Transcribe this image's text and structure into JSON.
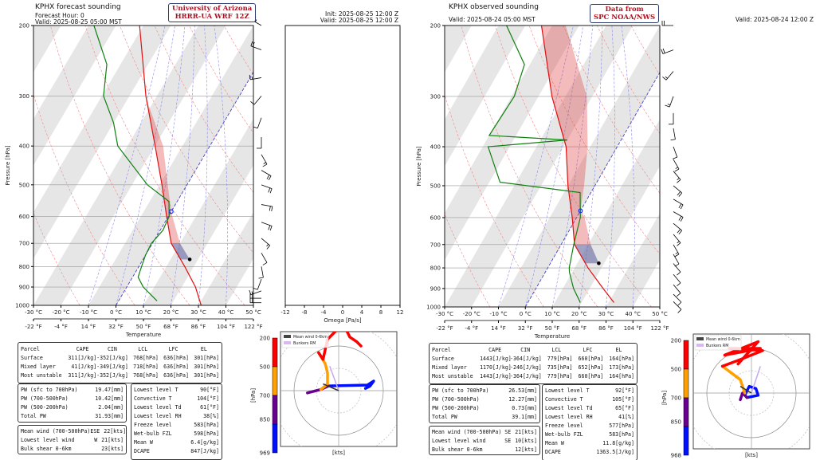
{
  "left": {
    "title": "KPHX forecast sounding",
    "subtitle1": "Forecast Hour: 0",
    "subtitle2": "Valid: 2025-08-25 05:00 MST",
    "badge": [
      "University of Arizona",
      "HRRR-UA WRF 12Z"
    ],
    "init": "Init: 2025-08-25 12:00 Z",
    "valid_z": "Valid: 2025-08-25 12:00 Z",
    "parcel_table": {
      "headers": [
        "Parcel",
        "CAPE",
        "CIN",
        "LCL",
        "LFC",
        "EL"
      ],
      "rows": [
        [
          "Surface",
          "311[J/kg]",
          "-352[J/kg]",
          "768[hPa]",
          "636[hPa]",
          "301[hPa]"
        ],
        [
          "Mixed layer",
          "41[J/kg]",
          "-349[J/kg]",
          "718[hPa]",
          "636[hPa]",
          "301[hPa]"
        ],
        [
          "Most unstable",
          "311[J/kg]",
          "-352[J/kg]",
          "768[hPa]",
          "636[hPa]",
          "301[hPa]"
        ]
      ]
    },
    "pw": [
      [
        "PW (sfc to 700hPa)",
        "19.47[mm]"
      ],
      [
        "PW (700-500hPa)",
        "10.42[mm]"
      ],
      [
        "PW (500-200hPa)",
        "2.04[mm]"
      ],
      [
        "Total PW",
        "31.93[mm]"
      ]
    ],
    "wind": [
      [
        "Mean wind (700-500hPa)",
        "ESE",
        "22[kts]"
      ],
      [
        "Lowest level wind",
        "W",
        "21[kts]"
      ],
      [
        "Bulk shear 0-6km",
        "",
        "23[kts]"
      ]
    ],
    "thermo": [
      [
        "Lowest level T",
        "90[°F]"
      ],
      [
        "Convective T",
        "104[°F]"
      ],
      [
        "Lowest level Td",
        "61[°F]"
      ],
      [
        "Lowest level RH",
        "38[%]"
      ],
      [
        "Freeze level",
        "583[hPa]"
      ],
      [
        "Wet-bulb FZL",
        "598[hPa]"
      ],
      [
        "Mean W",
        "6.4[g/kg]"
      ],
      [
        "DCAPE",
        "847[J/kg]"
      ]
    ]
  },
  "right": {
    "title": "KPHX observed sounding",
    "subtitle2": "Valid: 2025-08-24 05:00 MST",
    "badge": [
      "Data from",
      "SPC NOAA/NWS"
    ],
    "valid_z": "Valid: 2025-08-24 12:00 Z",
    "parcel_table": {
      "headers": [
        "Parcel",
        "CAPE",
        "CIN",
        "LCL",
        "LFC",
        "EL"
      ],
      "rows": [
        [
          "Surface",
          "1443[J/kg]",
          "-364[J/kg]",
          "779[hPa]",
          "660[hPa]",
          "164[hPa]"
        ],
        [
          "Mixed layer",
          "1170[J/kg]",
          "-246[J/kg]",
          "735[hPa]",
          "652[hPa]",
          "173[hPa]"
        ],
        [
          "Most unstable",
          "1443[J/kg]",
          "-364[J/kg]",
          "779[hPa]",
          "660[hPa]",
          "164[hPa]"
        ]
      ]
    },
    "pw": [
      [
        "PW (sfc to 700hPa)",
        "26.53[mm]"
      ],
      [
        "PW (700-500hPa)",
        "12.27[mm]"
      ],
      [
        "PW (500-200hPa)",
        "0.73[mm]"
      ],
      [
        "Total PW",
        "39.1[mm]"
      ]
    ],
    "wind": [
      [
        "Mean wind (700-500hPa)",
        "SE",
        "21[kts]"
      ],
      [
        "Lowest level wind",
        "SE",
        "10[kts]"
      ],
      [
        "Bulk shear 0-6km",
        "",
        "12[kts]"
      ]
    ],
    "thermo": [
      [
        "Lowest level T",
        "92[°F]"
      ],
      [
        "Convective T",
        "105[°F]"
      ],
      [
        "Lowest level Td",
        "65[°F]"
      ],
      [
        "Lowest level RH",
        "41[%]"
      ],
      [
        "Freeze level",
        "577[hPa]"
      ],
      [
        "Wet-bulb FZL",
        "583[hPa]"
      ],
      [
        "Mean W",
        "11.8[g/kg]"
      ],
      [
        "DCAPE",
        "1363.5[J/kg]"
      ]
    ]
  },
  "chart_data": [
    {
      "type": "line",
      "name_ref": "left-skewt",
      "xlabel": "Temperature",
      "ylabel": "Pressure [hPa]",
      "xlim": [
        -30,
        50
      ],
      "ylim": [
        1000,
        200
      ],
      "yscale": "log",
      "x_ticks": [
        "-30 °C",
        "-20 °C",
        "-10 °C",
        "0 °C",
        "10 °C",
        "20 °C",
        "30 °C",
        "40 °C",
        "50 °C"
      ],
      "x2_ticks": [
        "-22 °F",
        "-4 °F",
        "14 °F",
        "32 °F",
        "50 °F",
        "68 °F",
        "86 °F",
        "104 °F",
        "122 °F"
      ],
      "y_ticks": [
        "200",
        "300",
        "400",
        "500",
        "600",
        "700",
        "800",
        "900",
        "1000"
      ],
      "temperature": {
        "color": "#e01010",
        "p": [
          1000,
          900,
          800,
          700,
          600,
          500,
          400,
          300,
          200
        ],
        "t": [
          31,
          25,
          16.7,
          6.8,
          -0.6,
          -9.1,
          -19.9,
          -34,
          -51.4
        ]
      },
      "dewpoint": {
        "color": "#108010",
        "p": [
          975,
          900,
          850,
          800,
          750,
          700,
          650,
          600,
          550,
          500,
          400,
          350,
          300,
          250,
          200
        ],
        "t": [
          14,
          6,
          2,
          1,
          0,
          -0.4,
          1,
          0.3,
          -3,
          -14.4,
          -33.5,
          -40,
          -49.4,
          -55,
          -68
        ]
      },
      "parcel": {
        "p": [
          768,
          700,
          600,
          583,
          500,
          400,
          301
        ],
        "t": [
          17,
          10,
          1.5,
          0,
          -7,
          -17,
          -34
        ]
      },
      "lcl_hpa": 768,
      "freeze_hpa": 583,
      "omega": {
        "xlabel": "Omega [Pa/s]",
        "xlim": [
          -12,
          12
        ],
        "x_ticks": [
          "-12",
          "-8",
          "-4",
          "0",
          "4",
          "8",
          "12"
        ]
      },
      "barbs": {
        "p": [
          200,
          230,
          270,
          300,
          340,
          380,
          420,
          460,
          500,
          560,
          620,
          680,
          740,
          800,
          860,
          920,
          960,
          985
        ],
        "dir": [
          300,
          290,
          260,
          220,
          200,
          180,
          150,
          120,
          110,
          100,
          110,
          130,
          150,
          170,
          200,
          250,
          270,
          270
        ],
        "spd": [
          25,
          20,
          15,
          10,
          10,
          10,
          15,
          20,
          20,
          20,
          20,
          15,
          10,
          10,
          10,
          15,
          20,
          21
        ]
      },
      "hodograph": {
        "ylabel": "[hPa]",
        "xlabel": "[kts]",
        "colorbar_ticks": [
          "200",
          "500",
          "700",
          "850",
          "969"
        ],
        "legend": [
          "Mean wind 0-6km",
          "Bunkers RM"
        ],
        "segments": [
          {
            "color": "#0010ff",
            "u": [
              -4.6,
              5,
              12.9,
              15.7,
              14,
              12
            ],
            "v": [
              2.1,
              2.3,
              2.5,
              4.3,
              2,
              1
            ]
          },
          {
            "color": "#6a0090",
            "u": [
              -14,
              -8,
              -4.6
            ],
            "v": [
              -1,
              0.5,
              2.1
            ]
          },
          {
            "color": "#ffa000",
            "u": [
              -8,
              -5,
              -5,
              -6,
              -9
            ],
            "v": [
              0.5,
              3,
              8,
              12,
              17
            ]
          },
          {
            "color": "#ff0000",
            "u": [
              -9,
              -7,
              -5,
              -3,
              2,
              5,
              8,
              10
            ],
            "v": [
              17,
              14,
              23,
              25,
              30,
              24,
              22,
              20
            ]
          }
        ],
        "mean_wind": [
          -7,
          3
        ],
        "bunkers_rm": [
          -4,
          11
        ]
      }
    },
    {
      "type": "line",
      "name_ref": "right-skewt",
      "xlabel": "Temperature",
      "ylabel": "Pressure [hPa]",
      "xlim": [
        -30,
        50
      ],
      "ylim": [
        1000,
        200
      ],
      "yscale": "log",
      "x_ticks": [
        "-30 °C",
        "-20 °C",
        "-10 °C",
        "0 °C",
        "10 °C",
        "20 °C",
        "30 °C",
        "40 °C",
        "50 °C"
      ],
      "x2_ticks": [
        "-22 °F",
        "-4 °F",
        "14 °F",
        "32 °F",
        "50 °F",
        "68 °F",
        "86 °F",
        "104 °F",
        "122 °F"
      ],
      "y_ticks": [
        "200",
        "300",
        "400",
        "500",
        "600",
        "700",
        "800",
        "900",
        "1000"
      ],
      "temperature": {
        "color": "#e01010",
        "p": [
          975,
          900,
          800,
          700,
          600,
          500,
          400,
          300,
          200
        ],
        "t": [
          32,
          25,
          15,
          5,
          -1.6,
          -10,
          -19,
          -35,
          -54
        ]
      },
      "dewpoint": {
        "color": "#108010",
        "p": [
          975,
          900,
          820,
          800,
          700,
          600,
          520,
          490,
          400,
          385,
          375,
          300,
          250,
          200
        ],
        "t": [
          19.5,
          14,
          9,
          8,
          4.7,
          1.4,
          -4,
          -36,
          -48,
          -20,
          -50,
          -49,
          -52,
          -67
        ]
      },
      "parcel": {
        "p": [
          779,
          700,
          600,
          577,
          500,
          400,
          300,
          200
        ],
        "t": [
          18,
          11,
          3,
          0,
          -4,
          -11,
          -22,
          -45
        ]
      },
      "lcl_hpa": 779,
      "freeze_hpa": 577,
      "barbs": {
        "p": [
          200,
          230,
          260,
          300,
          330,
          360,
          400,
          430,
          460,
          500,
          540,
          580,
          620,
          660,
          700,
          740,
          780,
          830,
          880,
          930,
          970
        ],
        "dir": [
          270,
          250,
          220,
          200,
          180,
          170,
          160,
          150,
          140,
          130,
          120,
          120,
          130,
          140,
          150,
          150,
          140,
          140,
          140,
          135,
          135
        ],
        "spd": [
          20,
          20,
          15,
          15,
          10,
          10,
          10,
          15,
          15,
          20,
          20,
          20,
          20,
          15,
          15,
          10,
          10,
          10,
          10,
          10,
          10
        ]
      },
      "hodograph": {
        "ylabel": "[hPa]",
        "xlabel": "[kts]",
        "colorbar_ticks": [
          "200",
          "500",
          "700",
          "850",
          "968"
        ],
        "legend": [
          "Mean wind 0-6km",
          "Bunkers RM"
        ],
        "segments": [
          {
            "color": "#0010ff",
            "u": [
              -2,
              3,
              2,
              -1,
              -3
            ],
            "v": [
              -2,
              -1,
              2,
              3,
              -1
            ]
          },
          {
            "color": "#6a0090",
            "u": [
              -5,
              -4,
              -3,
              -2
            ],
            "v": [
              -3,
              0,
              -1,
              -2
            ]
          },
          {
            "color": "#ffa000",
            "u": [
              -13,
              -9,
              -5,
              -3
            ],
            "v": [
              12,
              9,
              6,
              0
            ]
          },
          {
            "color": "#ff0000",
            "u": [
              -13,
              -5,
              5,
              -10,
              4,
              -12,
              3,
              -6
            ],
            "v": [
              12,
              15,
              19,
              20,
              20,
              17,
              23,
              13
            ]
          }
        ],
        "mean_wind": [
          -5,
          3
        ],
        "bunkers_rm": [
          4,
          12
        ]
      }
    }
  ]
}
